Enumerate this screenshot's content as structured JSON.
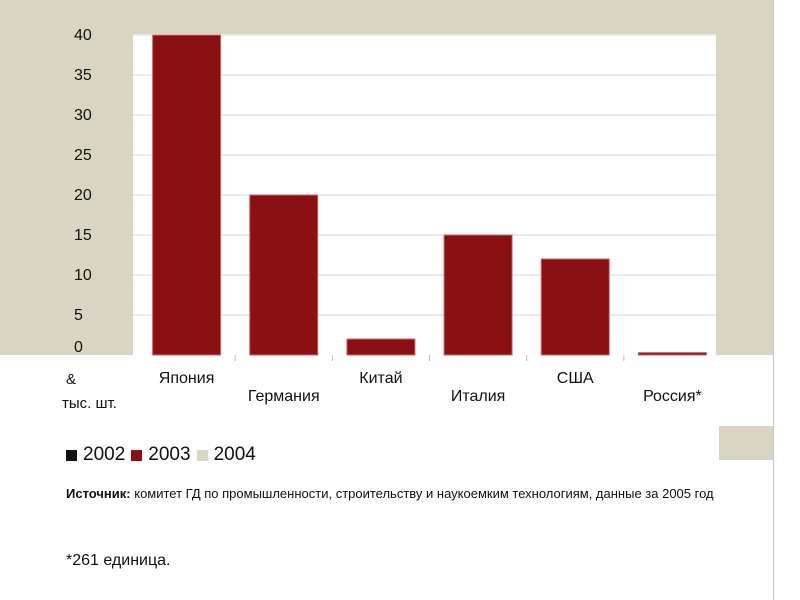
{
  "chart_data": {
    "type": "bar",
    "categories": [
      "Япония",
      "Германия",
      "Китай",
      "Италия",
      "США",
      "Россия*"
    ],
    "series": [
      {
        "name": "2003",
        "values": [
          40,
          20,
          2,
          15,
          12,
          0.3
        ]
      }
    ],
    "ylim": [
      0,
      40
    ],
    "yticks": [
      0,
      5,
      10,
      15,
      20,
      25,
      30,
      35,
      40
    ],
    "yunit_symbol": "&",
    "yunit": "тыс. шт.",
    "grid": true
  },
  "legend": [
    {
      "label": "2002",
      "color": "#111111"
    },
    {
      "label": "2003",
      "color": "#8b1014"
    },
    {
      "label": "2004",
      "color": "#d8d5c2"
    }
  ],
  "source": {
    "label": "Источник:",
    "text": " комитет ГД по промышленности, строительству и наукоемким технологиям, данные за 2005 год"
  },
  "footnote": "*261 единица.",
  "colors": {
    "bar": "#8b1014",
    "panel": "#d8d5c2",
    "plot_bg": "#ffffff"
  }
}
